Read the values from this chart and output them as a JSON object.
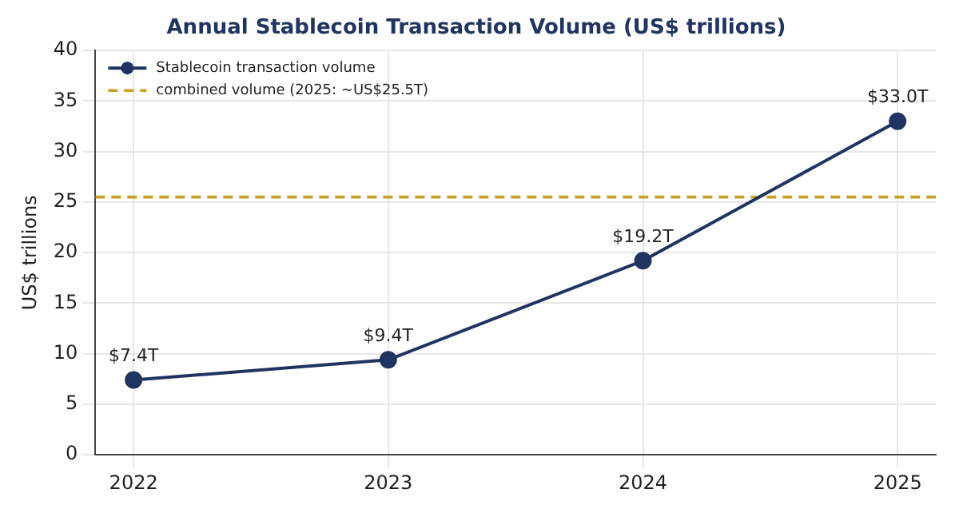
{
  "chart_data": {
    "type": "line",
    "title": "Annual Stablecoin Transaction Volume (US$ trillions)",
    "ylabel": "US$ trillions",
    "x": [
      2022,
      2023,
      2024,
      2025
    ],
    "xlim": [
      2021.85,
      2025.15
    ],
    "xticks": [
      2022,
      2023,
      2024,
      2025
    ],
    "series": [
      {
        "name": "Stablecoin transaction volume",
        "color": "#1f3461",
        "values": [
          7.4,
          9.4,
          19.2,
          33.0
        ],
        "value_labels": [
          "$7.4T",
          "$9.4T",
          "$19.2T",
          "$33.0T"
        ]
      }
    ],
    "ref_lines": [
      {
        "axis": "y",
        "value": 25.5,
        "label": "combined volume (2025: ~US$25.5T)",
        "color": "#c9a020",
        "line_style": "dashed"
      }
    ],
    "ylim": [
      0,
      40
    ],
    "yticks": [
      0,
      5,
      10,
      15,
      20,
      25,
      30,
      35,
      40
    ],
    "grid": true,
    "legend": "top left",
    "marker": "circle",
    "line_style": "solid"
  }
}
